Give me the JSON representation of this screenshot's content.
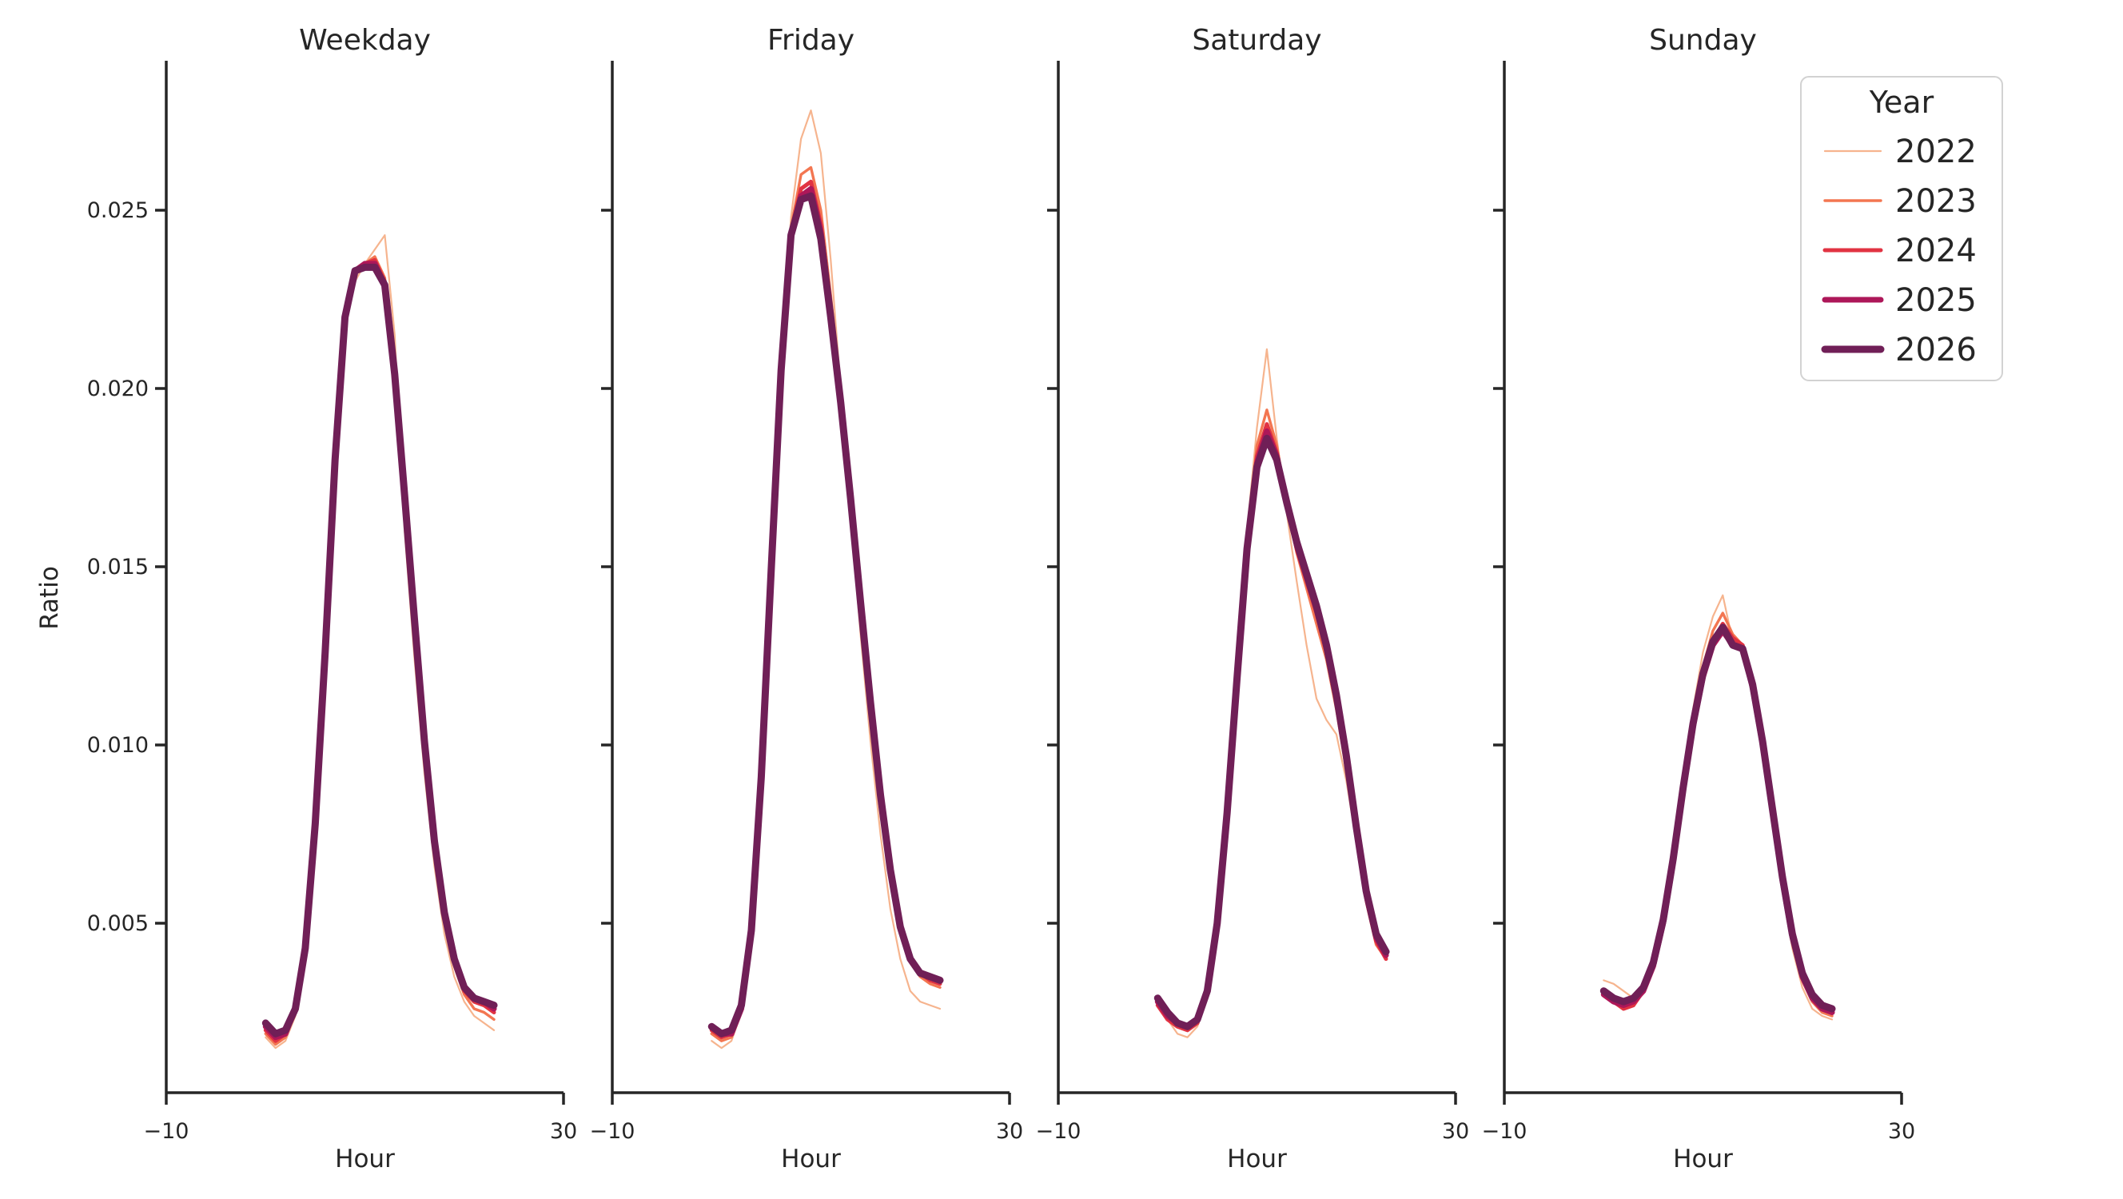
{
  "figure": {
    "background": "#ffffff",
    "axis_color": "#262626",
    "text_color": "#262626",
    "legend_border_color": "#d2d2d2",
    "legend_background": "#ffffff"
  },
  "chart_data": {
    "type": "line",
    "xlabel": "Hour",
    "ylabel": "Ratio",
    "xlim": [
      -10,
      30
    ],
    "xticks": [
      -10,
      30
    ],
    "xtick_labels": [
      "−10",
      "30"
    ],
    "ylim": [
      0.0,
      0.0292
    ],
    "yticks": [
      0.005,
      0.01,
      0.015,
      0.02,
      0.025
    ],
    "ytick_labels": [
      "0.005",
      "0.010",
      "0.015",
      "0.020",
      "0.025"
    ],
    "grid": false,
    "legend": {
      "title": "Year",
      "position": "upper right",
      "entries": [
        "2022",
        "2023",
        "2024",
        "2025",
        "2026"
      ]
    },
    "series_meta": [
      {
        "name": "2022",
        "color": "#f6b48e",
        "line_width": 2.2
      },
      {
        "name": "2023",
        "color": "#f37651",
        "line_width": 3.4
      },
      {
        "name": "2024",
        "color": "#e13342",
        "line_width": 5.0
      },
      {
        "name": "2025",
        "color": "#ad1759",
        "line_width": 7.0
      },
      {
        "name": "2026",
        "color": "#701f57",
        "line_width": 9.0
      }
    ],
    "x": [
      0,
      1,
      2,
      3,
      4,
      5,
      6,
      7,
      8,
      9,
      10,
      11,
      12,
      13,
      14,
      15,
      16,
      17,
      18,
      19,
      20,
      21,
      22,
      23
    ],
    "facets": [
      {
        "title": "Weekday",
        "series": [
          {
            "name": "2022",
            "values": [
              0.0018,
              0.0015,
              0.0017,
              0.0024,
              0.0041,
              0.0076,
              0.0124,
              0.0178,
              0.0217,
              0.023,
              0.0235,
              0.0239,
              0.0243,
              0.0215,
              0.016,
              0.0124,
              0.0092,
              0.0066,
              0.0047,
              0.0035,
              0.0028,
              0.0024,
              0.0022,
              0.002
            ]
          },
          {
            "name": "2023",
            "values": [
              0.0019,
              0.0016,
              0.0018,
              0.0025,
              0.0042,
              0.0077,
              0.0125,
              0.0179,
              0.0218,
              0.0232,
              0.0235,
              0.0237,
              0.0231,
              0.0202,
              0.0168,
              0.0132,
              0.0098,
              0.0071,
              0.0051,
              0.0038,
              0.003,
              0.0026,
              0.0025,
              0.0023
            ]
          },
          {
            "name": "2024",
            "values": [
              0.002,
              0.0017,
              0.0019,
              0.0025,
              0.0042,
              0.0077,
              0.0125,
              0.0179,
              0.0219,
              0.0233,
              0.0235,
              0.0236,
              0.023,
              0.0203,
              0.0169,
              0.0134,
              0.01,
              0.0072,
              0.0052,
              0.0039,
              0.0031,
              0.0028,
              0.0027,
              0.0025
            ]
          },
          {
            "name": "2025",
            "values": [
              0.0021,
              0.0018,
              0.0019,
              0.0026,
              0.0043,
              0.0078,
              0.0126,
              0.018,
              0.022,
              0.0233,
              0.0235,
              0.0235,
              0.0229,
              0.0203,
              0.017,
              0.0135,
              0.0101,
              0.0073,
              0.0053,
              0.004,
              0.0032,
              0.0029,
              0.0028,
              0.0026
            ]
          },
          {
            "name": "2026",
            "values": [
              0.0022,
              0.0019,
              0.002,
              0.0026,
              0.0043,
              0.0078,
              0.0126,
              0.018,
              0.022,
              0.0233,
              0.0234,
              0.0234,
              0.0229,
              0.0204,
              0.017,
              0.0135,
              0.0101,
              0.0073,
              0.0053,
              0.004,
              0.0032,
              0.0029,
              0.0028,
              0.0027
            ]
          }
        ]
      },
      {
        "title": "Friday",
        "series": [
          {
            "name": "2022",
            "values": [
              0.0017,
              0.0015,
              0.0017,
              0.0025,
              0.0046,
              0.0089,
              0.0147,
              0.0207,
              0.0248,
              0.027,
              0.0278,
              0.0266,
              0.0236,
              0.02,
              0.0165,
              0.0131,
              0.0101,
              0.0075,
              0.0054,
              0.004,
              0.0031,
              0.0028,
              0.0027,
              0.0026
            ]
          },
          {
            "name": "2023",
            "values": [
              0.0019,
              0.0017,
              0.0018,
              0.0026,
              0.0047,
              0.009,
              0.0148,
              0.0206,
              0.0245,
              0.026,
              0.0262,
              0.025,
              0.0226,
              0.0199,
              0.0171,
              0.0141,
              0.0112,
              0.0086,
              0.0064,
              0.0048,
              0.0039,
              0.0035,
              0.0033,
              0.0032
            ]
          },
          {
            "name": "2024",
            "values": [
              0.002,
              0.0018,
              0.0019,
              0.0026,
              0.0047,
              0.009,
              0.0148,
              0.0205,
              0.0244,
              0.0256,
              0.0258,
              0.0246,
              0.0223,
              0.0197,
              0.017,
              0.0141,
              0.0112,
              0.0086,
              0.0064,
              0.0049,
              0.004,
              0.0036,
              0.0034,
              0.0033
            ]
          },
          {
            "name": "2025",
            "values": [
              0.0021,
              0.0019,
              0.0019,
              0.0026,
              0.0047,
              0.009,
              0.0148,
              0.0205,
              0.0243,
              0.0254,
              0.0256,
              0.0244,
              0.0221,
              0.0196,
              0.0169,
              0.014,
              0.0112,
              0.0086,
              0.0064,
              0.0049,
              0.004,
              0.0036,
              0.0035,
              0.0034
            ]
          },
          {
            "name": "2026",
            "values": [
              0.0021,
              0.0019,
              0.002,
              0.0027,
              0.0048,
              0.0091,
              0.0149,
              0.0205,
              0.0243,
              0.0253,
              0.0254,
              0.0242,
              0.022,
              0.0196,
              0.0169,
              0.014,
              0.0112,
              0.0086,
              0.0065,
              0.0049,
              0.004,
              0.0036,
              0.0035,
              0.0034
            ]
          }
        ]
      },
      {
        "title": "Saturday",
        "series": [
          {
            "name": "2022",
            "values": [
              0.0028,
              0.0023,
              0.0019,
              0.0018,
              0.0021,
              0.0029,
              0.0048,
              0.0079,
              0.0118,
              0.016,
              0.0189,
              0.0211,
              0.0186,
              0.0165,
              0.0146,
              0.0128,
              0.0113,
              0.0107,
              0.0103,
              0.009,
              0.0073,
              0.0056,
              0.0044,
              0.004
            ]
          },
          {
            "name": "2023",
            "values": [
              0.0027,
              0.0023,
              0.0021,
              0.002,
              0.0022,
              0.003,
              0.0049,
              0.008,
              0.0119,
              0.0158,
              0.0184,
              0.0194,
              0.0184,
              0.0168,
              0.0154,
              0.0144,
              0.0134,
              0.0124,
              0.011,
              0.0093,
              0.0074,
              0.0056,
              0.0044,
              0.004
            ]
          },
          {
            "name": "2024",
            "values": [
              0.0027,
              0.0023,
              0.0021,
              0.002,
              0.0022,
              0.003,
              0.0049,
              0.008,
              0.0119,
              0.0157,
              0.0181,
              0.019,
              0.0182,
              0.0168,
              0.0155,
              0.0146,
              0.0137,
              0.0126,
              0.0112,
              0.0095,
              0.0075,
              0.0057,
              0.0045,
              0.004
            ]
          },
          {
            "name": "2025",
            "values": [
              0.0028,
              0.0024,
              0.0022,
              0.0021,
              0.0023,
              0.0031,
              0.005,
              0.0081,
              0.0119,
              0.0156,
              0.0179,
              0.0188,
              0.0181,
              0.0168,
              0.0156,
              0.0147,
              0.0138,
              0.0127,
              0.0113,
              0.0096,
              0.0076,
              0.0058,
              0.0046,
              0.0041
            ]
          },
          {
            "name": "2026",
            "values": [
              0.0029,
              0.0025,
              0.0022,
              0.0021,
              0.0023,
              0.0031,
              0.005,
              0.0081,
              0.0119,
              0.0155,
              0.0178,
              0.0186,
              0.018,
              0.0168,
              0.0157,
              0.0148,
              0.0139,
              0.0128,
              0.0114,
              0.0097,
              0.0077,
              0.0059,
              0.0047,
              0.0042
            ]
          }
        ]
      },
      {
        "title": "Sunday",
        "series": [
          {
            "name": "2022",
            "values": [
              0.0034,
              0.0033,
              0.0031,
              0.0029,
              0.0033,
              0.004,
              0.0052,
              0.0069,
              0.009,
              0.011,
              0.0126,
              0.0136,
              0.0142,
              0.0129,
              0.0126,
              0.0115,
              0.0098,
              0.0078,
              0.0059,
              0.0043,
              0.0032,
              0.0026,
              0.0024,
              0.0023
            ]
          },
          {
            "name": "2023",
            "values": [
              0.0031,
              0.0029,
              0.0026,
              0.0027,
              0.0031,
              0.0039,
              0.0051,
              0.0068,
              0.0088,
              0.0107,
              0.0122,
              0.0132,
              0.0137,
              0.0131,
              0.0128,
              0.0117,
              0.01,
              0.008,
              0.0061,
              0.0045,
              0.0034,
              0.0028,
              0.0025,
              0.0024
            ]
          },
          {
            "name": "2024",
            "values": [
              0.003,
              0.0028,
              0.0026,
              0.0027,
              0.0031,
              0.0038,
              0.005,
              0.0067,
              0.0087,
              0.0105,
              0.012,
              0.0129,
              0.0134,
              0.013,
              0.0128,
              0.0117,
              0.0101,
              0.0081,
              0.0062,
              0.0046,
              0.0035,
              0.0029,
              0.0026,
              0.0025
            ]
          },
          {
            "name": "2025",
            "values": [
              0.003,
              0.0028,
              0.0027,
              0.0028,
              0.0031,
              0.0038,
              0.005,
              0.0067,
              0.0087,
              0.0105,
              0.0119,
              0.0128,
              0.0132,
              0.0128,
              0.0127,
              0.0116,
              0.01,
              0.0081,
              0.0062,
              0.0046,
              0.0035,
              0.0029,
              0.0026,
              0.0025
            ]
          },
          {
            "name": "2026",
            "values": [
              0.0031,
              0.0029,
              0.0028,
              0.0029,
              0.0032,
              0.0039,
              0.0051,
              0.0068,
              0.0088,
              0.0106,
              0.012,
              0.0129,
              0.0133,
              0.0128,
              0.0127,
              0.0117,
              0.0101,
              0.0082,
              0.0063,
              0.0047,
              0.0036,
              0.003,
              0.0027,
              0.0026
            ]
          }
        ]
      }
    ]
  }
}
